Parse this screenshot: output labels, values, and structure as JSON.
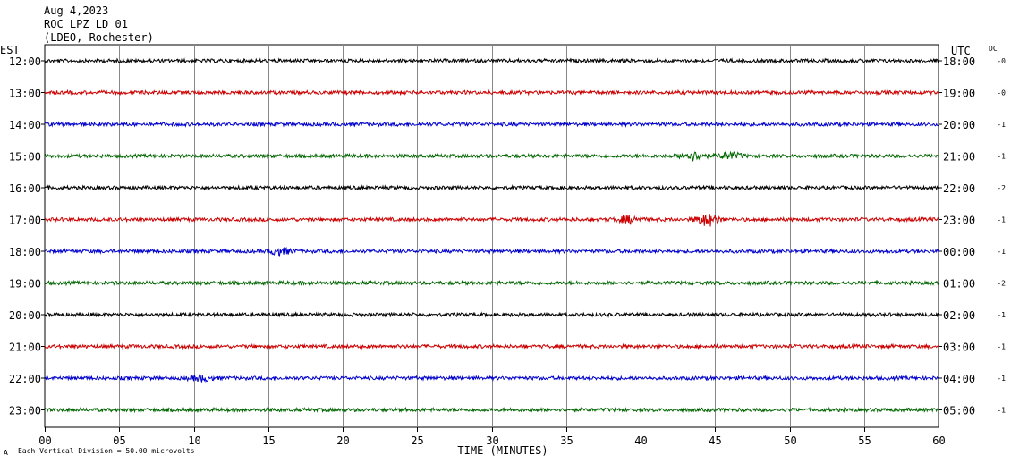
{
  "header": {
    "date": "Aug 4,2023",
    "station": "ROC LPZ LD 01",
    "network": "(LDEO, Rochester)"
  },
  "footer": {
    "scale_note": "Each Vertical Division =   50.00 microvolts",
    "mark": "A"
  },
  "chart_data": {
    "type": "line",
    "subtype": "helicorder",
    "xlabel": "TIME (MINUTES)",
    "left_label": "EST",
    "right_label": "UTC",
    "dc_label": "DC",
    "xlim": [
      0,
      60
    ],
    "x_ticks": [
      0,
      5,
      10,
      15,
      20,
      25,
      30,
      35,
      40,
      45,
      50,
      55,
      60
    ],
    "x_tick_labels": [
      "00",
      "05",
      "10",
      "15",
      "20",
      "25",
      "30",
      "35",
      "40",
      "45",
      "50",
      "55",
      "60"
    ],
    "grid": true,
    "colors": [
      "#000000",
      "#cc0000",
      "#0000cc",
      "#006600"
    ],
    "rows": [
      {
        "est": "12:00",
        "utc": "18:00",
        "dc": "-0",
        "color": "#000000",
        "events": []
      },
      {
        "est": "13:00",
        "utc": "19:00",
        "dc": "-0",
        "color": "#cc0000",
        "events": []
      },
      {
        "est": "14:00",
        "utc": "20:00",
        "dc": "-1",
        "color": "#0000cc",
        "events": []
      },
      {
        "est": "15:00",
        "utc": "21:00",
        "dc": "-1",
        "color": "#006600",
        "events": [
          {
            "minute": 43.5,
            "amp": 2.0
          },
          {
            "minute": 46.0,
            "amp": 1.6
          }
        ]
      },
      {
        "est": "16:00",
        "utc": "22:00",
        "dc": "-2",
        "color": "#000000",
        "events": []
      },
      {
        "est": "17:00",
        "utc": "23:00",
        "dc": "-1",
        "color": "#cc0000",
        "events": [
          {
            "minute": 39.2,
            "amp": 1.6
          },
          {
            "minute": 44.5,
            "amp": 3.2
          }
        ]
      },
      {
        "est": "18:00",
        "utc": "00:00",
        "dc": "-1",
        "color": "#0000cc",
        "events": [
          {
            "minute": 15.8,
            "amp": 1.6
          }
        ]
      },
      {
        "est": "19:00",
        "utc": "01:00",
        "dc": "-2",
        "color": "#006600",
        "events": []
      },
      {
        "est": "20:00",
        "utc": "02:00",
        "dc": "-1",
        "color": "#000000",
        "events": []
      },
      {
        "est": "21:00",
        "utc": "03:00",
        "dc": "-1",
        "color": "#cc0000",
        "events": []
      },
      {
        "est": "22:00",
        "utc": "04:00",
        "dc": "-1",
        "color": "#0000cc",
        "events": [
          {
            "minute": 10.5,
            "amp": 1.4
          }
        ]
      },
      {
        "est": "23:00",
        "utc": "05:00",
        "dc": "-1",
        "color": "#006600",
        "events": []
      }
    ]
  }
}
